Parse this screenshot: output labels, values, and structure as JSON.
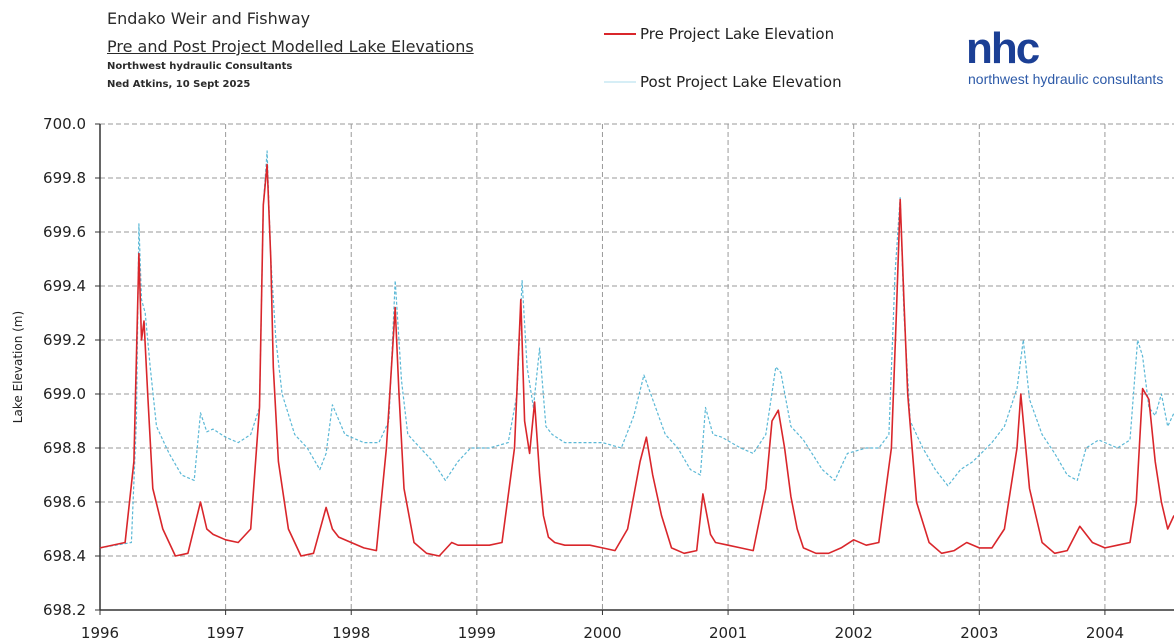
{
  "header": {
    "title": "Endako Weir and Fishway",
    "subtitle": "Pre and Post Project Modelled Lake Elevations",
    "org": "Northwest hydraulic Consultants",
    "author": "Ned Atkins, 10 Sept 2025"
  },
  "legend": {
    "pre": "Pre Project Lake Elevation",
    "post": "Post Project Lake Elevation"
  },
  "logo": {
    "mark": "nhc",
    "text": "northwest hydraulic consultants"
  },
  "chart_data": {
    "type": "line",
    "title": "Endako Weir and Fishway",
    "ylabel": "Lake Elevation (m)",
    "xlabel": "",
    "ylim": [
      698.2,
      700.0
    ],
    "xlim": [
      1996.0,
      2004.55
    ],
    "grid": true,
    "legend_position": "top-center",
    "x_ticks": [
      "1996",
      "1997",
      "1998",
      "1999",
      "2000",
      "2001",
      "2002",
      "2003",
      "2004"
    ],
    "y_ticks": [
      "698.2",
      "698.4",
      "698.6",
      "698.8",
      "699.0",
      "699.2",
      "699.4",
      "699.6",
      "699.8",
      "700.0"
    ],
    "series": [
      {
        "name": "Pre Project Lake Elevation",
        "color": "#d9262b",
        "x": [
          1996.0,
          1996.2,
          1996.27,
          1996.31,
          1996.33,
          1996.35,
          1996.38,
          1996.42,
          1996.5,
          1996.6,
          1996.7,
          1996.8,
          1996.85,
          1996.9,
          1997.0,
          1997.1,
          1997.2,
          1997.27,
          1997.3,
          1997.33,
          1997.36,
          1997.38,
          1997.42,
          1997.5,
          1997.6,
          1997.7,
          1997.8,
          1997.85,
          1997.9,
          1998.0,
          1998.1,
          1998.2,
          1998.28,
          1998.35,
          1998.38,
          1998.42,
          1998.5,
          1998.6,
          1998.7,
          1998.8,
          1998.85,
          1998.9,
          1999.0,
          1999.1,
          1999.2,
          1999.3,
          1999.35,
          1999.38,
          1999.42,
          1999.46,
          1999.5,
          1999.53,
          1999.57,
          1999.62,
          1999.7,
          1999.8,
          1999.9,
          2000.0,
          2000.1,
          2000.2,
          2000.3,
          2000.35,
          2000.4,
          2000.47,
          2000.55,
          2000.65,
          2000.75,
          2000.8,
          2000.86,
          2000.9,
          2001.0,
          2001.1,
          2001.2,
          2001.3,
          2001.35,
          2001.4,
          2001.45,
          2001.5,
          2001.55,
          2001.6,
          2001.7,
          2001.8,
          2001.9,
          2002.0,
          2002.1,
          2002.2,
          2002.3,
          2002.34,
          2002.37,
          2002.4,
          2002.43,
          2002.5,
          2002.6,
          2002.7,
          2002.8,
          2002.9,
          2003.0,
          2003.1,
          2003.2,
          2003.3,
          2003.33,
          2003.36,
          2003.4,
          2003.45,
          2003.5,
          2003.6,
          2003.7,
          2003.8,
          2003.9,
          2004.0,
          2004.1,
          2004.2,
          2004.25,
          2004.3,
          2004.35,
          2004.4,
          2004.45,
          2004.5,
          2004.55
        ],
        "values": [
          698.43,
          698.45,
          698.75,
          699.52,
          699.2,
          699.27,
          699.0,
          698.65,
          698.5,
          698.4,
          698.41,
          698.6,
          698.5,
          698.48,
          698.46,
          698.45,
          698.5,
          698.95,
          699.7,
          699.85,
          699.5,
          699.1,
          698.75,
          698.5,
          698.4,
          698.41,
          698.58,
          698.5,
          698.47,
          698.45,
          698.43,
          698.42,
          698.8,
          699.32,
          699.0,
          698.65,
          698.45,
          698.41,
          698.4,
          698.45,
          698.44,
          698.44,
          698.44,
          698.44,
          698.45,
          698.8,
          699.35,
          698.9,
          698.78,
          698.97,
          698.7,
          698.55,
          698.47,
          698.45,
          698.44,
          698.44,
          698.44,
          698.43,
          698.42,
          698.5,
          698.75,
          698.84,
          698.7,
          698.55,
          698.43,
          698.41,
          698.42,
          698.63,
          698.48,
          698.45,
          698.44,
          698.43,
          698.42,
          698.65,
          698.9,
          698.94,
          698.8,
          698.62,
          698.5,
          698.43,
          698.41,
          698.41,
          698.43,
          698.46,
          698.44,
          698.45,
          698.8,
          699.3,
          699.72,
          699.35,
          699.0,
          698.6,
          698.45,
          698.41,
          698.42,
          698.45,
          698.43,
          698.43,
          698.5,
          698.8,
          699.0,
          698.85,
          698.65,
          698.55,
          698.45,
          698.41,
          698.42,
          698.51,
          698.45,
          698.43,
          698.44,
          698.45,
          698.6,
          699.02,
          698.98,
          698.75,
          698.6,
          698.5,
          698.55
        ]
      },
      {
        "name": "Post Project Lake Elevation",
        "color": "#5bb8d6",
        "x": [
          1996.0,
          1996.25,
          1996.29,
          1996.31,
          1996.33,
          1996.36,
          1996.4,
          1996.45,
          1996.55,
          1996.65,
          1996.75,
          1996.8,
          1996.85,
          1996.9,
          1997.0,
          1997.1,
          1997.2,
          1997.27,
          1997.3,
          1997.33,
          1997.36,
          1997.4,
          1997.45,
          1997.55,
          1997.65,
          1997.75,
          1997.8,
          1997.85,
          1997.95,
          1998.1,
          1998.22,
          1998.3,
          1998.35,
          1998.4,
          1998.45,
          1998.55,
          1998.65,
          1998.75,
          1998.85,
          1998.95,
          1999.1,
          1999.25,
          1999.32,
          1999.36,
          1999.4,
          1999.45,
          1999.5,
          1999.55,
          1999.6,
          1999.7,
          1999.8,
          2000.0,
          2000.15,
          2000.25,
          2000.33,
          2000.4,
          2000.5,
          2000.6,
          2000.7,
          2000.78,
          2000.82,
          2000.88,
          2000.95,
          2001.1,
          2001.2,
          2001.3,
          2001.38,
          2001.42,
          2001.5,
          2001.6,
          2001.75,
          2001.85,
          2001.95,
          2002.1,
          2002.2,
          2002.28,
          2002.33,
          2002.37,
          2002.4,
          2002.45,
          2002.55,
          2002.65,
          2002.75,
          2002.85,
          2002.95,
          2003.1,
          2003.2,
          2003.3,
          2003.35,
          2003.4,
          2003.5,
          2003.6,
          2003.7,
          2003.78,
          2003.85,
          2003.95,
          2004.1,
          2004.2,
          2004.26,
          2004.3,
          2004.35,
          2004.4,
          2004.45,
          2004.5,
          2004.55
        ],
        "values": [
          698.43,
          698.45,
          698.9,
          699.63,
          699.35,
          699.3,
          699.1,
          698.88,
          698.78,
          698.7,
          698.68,
          698.93,
          698.86,
          698.87,
          698.84,
          698.82,
          698.85,
          698.95,
          699.7,
          699.9,
          699.5,
          699.2,
          699.0,
          698.85,
          698.8,
          698.72,
          698.78,
          698.96,
          698.85,
          698.82,
          698.82,
          698.9,
          699.42,
          699.05,
          698.85,
          698.8,
          698.75,
          698.68,
          698.75,
          698.8,
          698.8,
          698.82,
          699.0,
          699.42,
          699.1,
          698.95,
          699.17,
          698.88,
          698.85,
          698.82,
          698.82,
          698.82,
          698.8,
          698.92,
          699.07,
          698.98,
          698.85,
          698.8,
          698.72,
          698.7,
          698.95,
          698.85,
          698.84,
          698.8,
          698.78,
          698.85,
          699.1,
          699.08,
          698.88,
          698.83,
          698.72,
          698.68,
          698.78,
          698.8,
          698.8,
          698.85,
          699.45,
          699.73,
          699.3,
          698.9,
          698.8,
          698.72,
          698.66,
          698.72,
          698.75,
          698.82,
          698.88,
          699.02,
          699.2,
          698.98,
          698.85,
          698.78,
          698.7,
          698.68,
          698.8,
          698.83,
          698.8,
          698.83,
          699.2,
          699.14,
          698.95,
          698.92,
          699.0,
          698.88,
          698.93
        ]
      }
    ]
  }
}
